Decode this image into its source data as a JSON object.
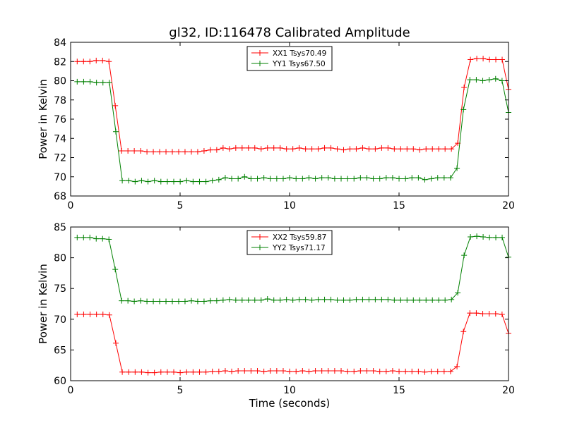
{
  "chart_data": [
    {
      "type": "line",
      "title": "gl32, ID:116478 Calibrated Amplitude",
      "xlabel": "",
      "ylabel": "Power in Kelvin",
      "xlim": [
        0,
        20
      ],
      "ylim": [
        68,
        84
      ],
      "xticks": [
        0,
        5,
        10,
        15,
        20
      ],
      "yticks": [
        68,
        70,
        72,
        74,
        76,
        78,
        80,
        82,
        84
      ],
      "legend_position": "top-center",
      "grid": false,
      "series": [
        {
          "name": "XX1 Tsys70.49",
          "color": "#ff0000",
          "values": [
            82.0,
            82.0,
            82.0,
            82.1,
            82.1,
            82.0,
            77.4,
            72.7,
            72.7,
            72.7,
            72.7,
            72.6,
            72.6,
            72.6,
            72.6,
            72.6,
            72.6,
            72.6,
            72.6,
            72.6,
            72.7,
            72.8,
            72.8,
            73.0,
            72.9,
            73.0,
            73.0,
            73.0,
            73.0,
            72.9,
            73.0,
            73.0,
            73.0,
            72.9,
            72.9,
            73.0,
            72.9,
            72.9,
            72.9,
            73.0,
            73.0,
            72.9,
            72.8,
            72.9,
            72.9,
            73.0,
            72.9,
            72.9,
            73.0,
            73.0,
            72.9,
            72.9,
            72.9,
            72.9,
            72.8,
            72.9,
            72.9,
            72.9,
            72.9,
            72.9,
            73.5,
            79.3,
            82.2,
            82.3,
            82.3,
            82.2,
            82.2,
            82.2,
            79.1
          ]
        },
        {
          "name": "YY1 Tsys67.50",
          "color": "#008000",
          "values": [
            79.9,
            79.9,
            79.9,
            79.8,
            79.8,
            79.8,
            74.7,
            69.6,
            69.6,
            69.5,
            69.6,
            69.5,
            69.6,
            69.5,
            69.5,
            69.5,
            69.5,
            69.6,
            69.5,
            69.5,
            69.5,
            69.6,
            69.7,
            69.9,
            69.8,
            69.8,
            70.0,
            69.8,
            69.8,
            69.9,
            69.8,
            69.8,
            69.8,
            69.9,
            69.8,
            69.8,
            69.9,
            69.8,
            69.9,
            69.9,
            69.8,
            69.8,
            69.8,
            69.8,
            69.9,
            69.9,
            69.8,
            69.8,
            69.9,
            69.9,
            69.8,
            69.8,
            69.9,
            69.9,
            69.7,
            69.8,
            69.9,
            69.9,
            69.9,
            70.9,
            77.0,
            80.1,
            80.1,
            80.0,
            80.1,
            80.2,
            80.0,
            76.7
          ]
        }
      ]
    },
    {
      "type": "line",
      "title": "",
      "xlabel": "Time (seconds)",
      "ylabel": "Power in Kelvin",
      "xlim": [
        0,
        20
      ],
      "ylim": [
        60,
        85
      ],
      "xticks": [
        0,
        5,
        10,
        15,
        20
      ],
      "yticks": [
        60,
        65,
        70,
        75,
        80,
        85
      ],
      "legend_position": "top-center",
      "grid": false,
      "series": [
        {
          "name": "XX2 Tsys59.87",
          "color": "#ff0000",
          "values": [
            70.8,
            70.8,
            70.8,
            70.8,
            70.8,
            70.7,
            66.1,
            61.4,
            61.4,
            61.4,
            61.4,
            61.3,
            61.3,
            61.4,
            61.4,
            61.4,
            61.3,
            61.4,
            61.4,
            61.4,
            61.4,
            61.5,
            61.5,
            61.6,
            61.5,
            61.6,
            61.6,
            61.6,
            61.6,
            61.5,
            61.6,
            61.6,
            61.6,
            61.5,
            61.5,
            61.6,
            61.5,
            61.6,
            61.6,
            61.6,
            61.6,
            61.6,
            61.5,
            61.5,
            61.6,
            61.6,
            61.6,
            61.5,
            61.5,
            61.6,
            61.5,
            61.5,
            61.5,
            61.5,
            61.4,
            61.5,
            61.5,
            61.5,
            61.5,
            62.3,
            68.0,
            71.0,
            71.0,
            70.9,
            70.9,
            70.9,
            70.8,
            67.7
          ]
        },
        {
          "name": "YY2 Tsys71.17",
          "color": "#008000",
          "values": [
            83.3,
            83.3,
            83.3,
            83.1,
            83.1,
            83.0,
            78.1,
            73.0,
            73.0,
            72.9,
            73.0,
            72.9,
            72.9,
            72.9,
            72.9,
            72.9,
            72.9,
            72.9,
            73.0,
            72.9,
            72.9,
            73.0,
            73.0,
            73.1,
            73.2,
            73.1,
            73.1,
            73.1,
            73.1,
            73.1,
            73.3,
            73.1,
            73.1,
            73.2,
            73.1,
            73.2,
            73.2,
            73.1,
            73.2,
            73.2,
            73.2,
            73.1,
            73.1,
            73.1,
            73.2,
            73.2,
            73.2,
            73.2,
            73.2,
            73.2,
            73.1,
            73.1,
            73.1,
            73.1,
            73.1,
            73.1,
            73.1,
            73.1,
            73.1,
            73.2,
            74.3,
            80.4,
            83.4,
            83.5,
            83.4,
            83.3,
            83.3,
            83.3,
            80.1
          ]
        }
      ]
    }
  ]
}
